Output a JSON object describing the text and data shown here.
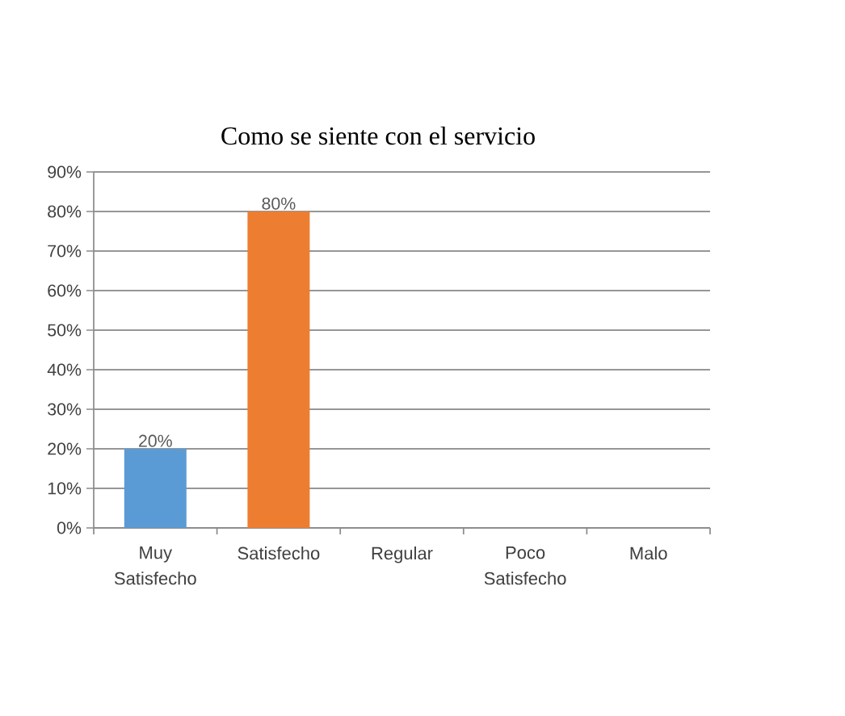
{
  "chart_data": {
    "type": "bar",
    "title": "Como se siente con el servicio",
    "categories": [
      "Muy Satisfecho",
      "Satisfecho",
      "Regular",
      "Poco Satisfecho",
      "Malo"
    ],
    "values": [
      20,
      80,
      null,
      null,
      null
    ],
    "colors": [
      "#5b9bd5",
      "#ed7d31",
      null,
      null,
      null
    ],
    "value_labels": [
      "20%",
      "80%",
      null,
      null,
      null
    ],
    "ylim": [
      0,
      90
    ],
    "yticks": [
      {
        "value": 0,
        "label": "0%"
      },
      {
        "value": 10,
        "label": "10%"
      },
      {
        "value": 20,
        "label": "20%"
      },
      {
        "value": 30,
        "label": "30%"
      },
      {
        "value": 40,
        "label": "40%"
      },
      {
        "value": 50,
        "label": "50%"
      },
      {
        "value": 60,
        "label": "60%"
      },
      {
        "value": 70,
        "label": "70%"
      },
      {
        "value": 80,
        "label": "80%"
      },
      {
        "value": 90,
        "label": "90%"
      }
    ],
    "grid": "y"
  }
}
